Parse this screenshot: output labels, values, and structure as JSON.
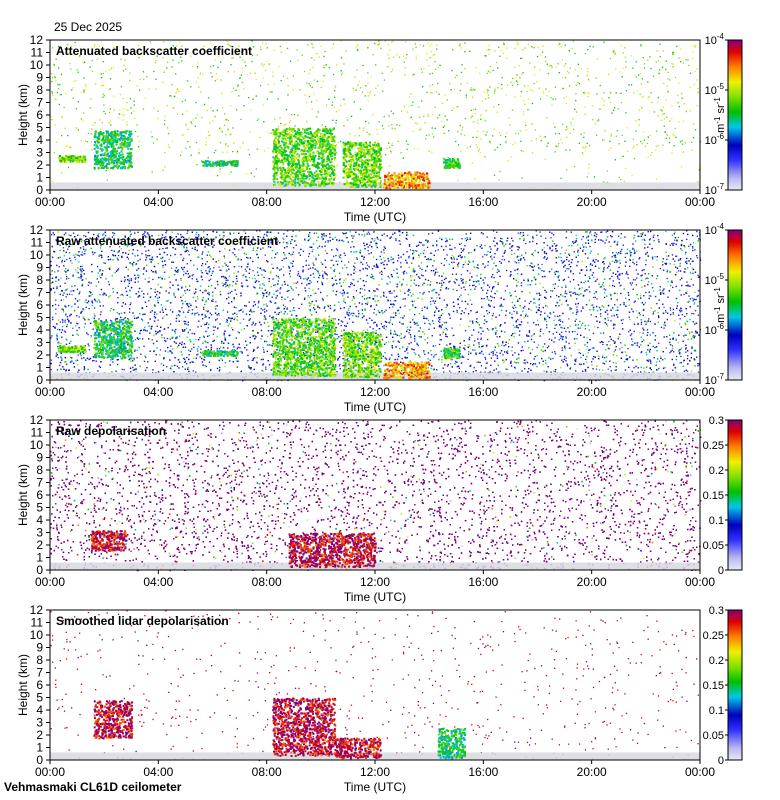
{
  "date_label": "25 Dec 2025",
  "footer_label": "Vehmasmaki CL61D ceilometer",
  "chart_data": [
    {
      "type": "heatmap",
      "title": "Attenuated backscatter coefficient",
      "xlabel": "Time (UTC)",
      "ylabel": "Height (km)",
      "x_ticks": [
        "00:00",
        "04:00",
        "08:00",
        "12:00",
        "16:00",
        "20:00",
        "00:00"
      ],
      "y_ticks": [
        "0",
        "1",
        "2",
        "3",
        "4",
        "5",
        "6",
        "7",
        "8",
        "9",
        "10",
        "11",
        "12"
      ],
      "ylim": [
        0,
        12
      ],
      "xlim_hours": [
        0,
        24
      ],
      "colorbar": {
        "scale": "log",
        "ticks": [
          "10",
          "10",
          "10",
          "10"
        ],
        "tick_exponents": [
          "-7",
          "-6",
          "-5",
          "-4"
        ],
        "unit_parts": [
          "m",
          "-1",
          " sr",
          "-1"
        ],
        "range": [
          1e-07,
          0.0001
        ]
      },
      "noise": "low",
      "features": [
        {
          "t0": 0.3,
          "t1": 1.3,
          "h0": 2.3,
          "h1": 2.8,
          "level": 0.62
        },
        {
          "t0": 1.6,
          "t1": 3.0,
          "h0": 1.8,
          "h1": 4.8,
          "level": 0.5
        },
        {
          "t0": 8.2,
          "t1": 10.5,
          "h0": 0.4,
          "h1": 5.0,
          "level": 0.58
        },
        {
          "t0": 10.8,
          "t1": 12.2,
          "h0": 0.3,
          "h1": 3.9,
          "level": 0.6
        },
        {
          "t0": 12.3,
          "t1": 14.0,
          "h0": 0.2,
          "h1": 1.5,
          "level": 0.8
        },
        {
          "t0": 14.5,
          "t1": 15.1,
          "h0": 1.8,
          "h1": 2.6,
          "level": 0.55
        },
        {
          "t0": 5.6,
          "t1": 6.9,
          "h0": 2.0,
          "h1": 2.4,
          "level": 0.5
        }
      ]
    },
    {
      "type": "heatmap",
      "title": "Raw attenuated backscatter coefficient",
      "xlabel": "Time (UTC)",
      "ylabel": "Height (km)",
      "x_ticks": [
        "00:00",
        "04:00",
        "08:00",
        "12:00",
        "16:00",
        "20:00",
        "00:00"
      ],
      "y_ticks": [
        "0",
        "1",
        "2",
        "3",
        "4",
        "5",
        "6",
        "7",
        "8",
        "9",
        "10",
        "11",
        "12"
      ],
      "ylim": [
        0,
        12
      ],
      "xlim_hours": [
        0,
        24
      ],
      "colorbar": {
        "scale": "log",
        "ticks": [
          "10",
          "10",
          "10",
          "10"
        ],
        "tick_exponents": [
          "-7",
          "-6",
          "-5",
          "-4"
        ],
        "unit_parts": [
          "m",
          "-1",
          " sr",
          "-1"
        ],
        "range": [
          1e-07,
          0.0001
        ]
      },
      "noise": "high",
      "features": [
        {
          "t0": 0.3,
          "t1": 1.3,
          "h0": 2.3,
          "h1": 2.8,
          "level": 0.62
        },
        {
          "t0": 1.6,
          "t1": 3.0,
          "h0": 1.8,
          "h1": 4.8,
          "level": 0.5
        },
        {
          "t0": 8.2,
          "t1": 10.5,
          "h0": 0.4,
          "h1": 5.0,
          "level": 0.58
        },
        {
          "t0": 10.8,
          "t1": 12.2,
          "h0": 0.3,
          "h1": 3.9,
          "level": 0.6
        },
        {
          "t0": 12.3,
          "t1": 14.0,
          "h0": 0.2,
          "h1": 1.5,
          "level": 0.8
        },
        {
          "t0": 14.5,
          "t1": 15.1,
          "h0": 1.8,
          "h1": 2.6,
          "level": 0.55
        },
        {
          "t0": 5.6,
          "t1": 6.9,
          "h0": 2.0,
          "h1": 2.4,
          "level": 0.5
        }
      ]
    },
    {
      "type": "heatmap",
      "title": "Raw depolarisation",
      "xlabel": "Time (UTC)",
      "ylabel": "Height (km)",
      "x_ticks": [
        "00:00",
        "04:00",
        "08:00",
        "12:00",
        "16:00",
        "20:00",
        "00:00"
      ],
      "y_ticks": [
        "0",
        "1",
        "2",
        "3",
        "4",
        "5",
        "6",
        "7",
        "8",
        "9",
        "10",
        "11",
        "12"
      ],
      "ylim": [
        0,
        12
      ],
      "xlim_hours": [
        0,
        24
      ],
      "colorbar": {
        "scale": "linear",
        "ticks": [
          "0",
          "0.05",
          "0.1",
          "0.15",
          "0.2",
          "0.25",
          "0.3"
        ],
        "range": [
          0,
          0.3
        ]
      },
      "noise": "depol-dense",
      "features": [
        {
          "t0": 1.5,
          "t1": 2.8,
          "h0": 1.6,
          "h1": 3.2,
          "level": 0.95
        },
        {
          "t0": 8.8,
          "t1": 12.0,
          "h0": 0.3,
          "h1": 3.0,
          "level": 0.95
        }
      ]
    },
    {
      "type": "heatmap",
      "title": "Smoothed lidar depolarisation",
      "xlabel": "Time (UTC)",
      "ylabel": "Height (km)",
      "x_ticks": [
        "00:00",
        "04:00",
        "08:00",
        "12:00",
        "16:00",
        "20:00",
        "00:00"
      ],
      "y_ticks": [
        "0",
        "1",
        "2",
        "3",
        "4",
        "5",
        "6",
        "7",
        "8",
        "9",
        "10",
        "11",
        "12"
      ],
      "ylim": [
        0,
        12
      ],
      "xlim_hours": [
        0,
        24
      ],
      "colorbar": {
        "scale": "linear",
        "ticks": [
          "0",
          "0.05",
          "0.1",
          "0.15",
          "0.2",
          "0.25",
          "0.3"
        ],
        "range": [
          0,
          0.3
        ]
      },
      "noise": "depol-sparse",
      "features": [
        {
          "t0": 1.6,
          "t1": 3.0,
          "h0": 1.8,
          "h1": 4.8,
          "level": 0.95
        },
        {
          "t0": 8.2,
          "t1": 10.5,
          "h0": 0.4,
          "h1": 5.0,
          "level": 0.95
        },
        {
          "t0": 10.5,
          "t1": 12.2,
          "h0": 0.2,
          "h1": 1.8,
          "level": 0.95
        },
        {
          "t0": 14.3,
          "t1": 15.3,
          "h0": 0.2,
          "h1": 2.6,
          "level": 0.5
        }
      ]
    }
  ]
}
